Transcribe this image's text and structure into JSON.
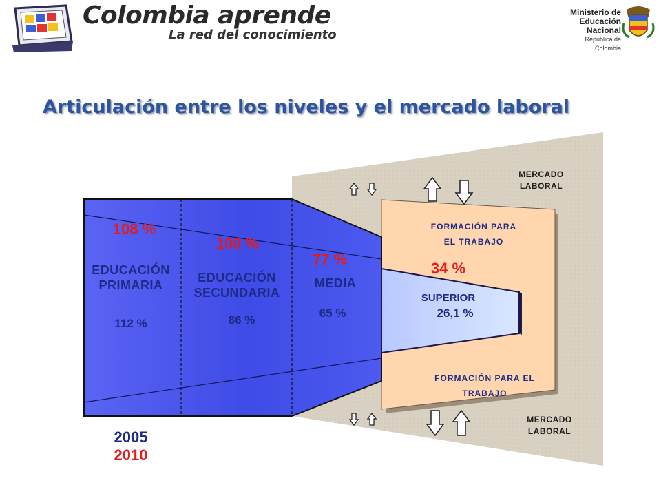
{
  "header": {
    "brand": "Colombia aprende",
    "tagline": "La red del conocimiento",
    "ministry_line1": "Ministerio de",
    "ministry_line2": "Educación",
    "ministry_line3": "Nacional",
    "ministry_line4": "República de Colombia"
  },
  "title": "Articulación entre los niveles y el mercado laboral",
  "levels": {
    "primaria": {
      "line1": "EDUCACIÓN",
      "line2": "PRIMARIA",
      "rate_2010": "108 %",
      "rate_2005": "112 %"
    },
    "secundaria": {
      "line1": "EDUCACIÓN",
      "line2": "SECUNDARIA",
      "rate_2010": "100 %",
      "rate_2005": "86 %"
    },
    "media": {
      "line1": "MEDIA",
      "rate_2010": "77 %",
      "rate_2005": "65 %"
    }
  },
  "outputs": {
    "formacion_top": {
      "line1": "FORMACIÓN PARA",
      "line2": "EL TRABAJO"
    },
    "superior": {
      "label": "SUPERIOR",
      "rate_2010": "34 %",
      "rate_2005": "26,1 %"
    },
    "formacion_bottom": {
      "line1": "FORMACIÓN PARA EL",
      "line2": "TRABAJO"
    }
  },
  "mercado_top": {
    "line1": "MERCADO",
    "line2": "LABORAL"
  },
  "mercado_bottom": {
    "line1": "MERCADO",
    "line2": "LABORAL"
  },
  "legend": {
    "year_2005": "2005",
    "year_2010": "2010"
  },
  "colors": {
    "title": "#2e54a0",
    "funnel_blue": "#4450ec",
    "orange": "#ffd7b0",
    "red": "#e21c1c",
    "navy": "#1d2a86",
    "background_panel": "#d9d2c4"
  },
  "icons": [
    "school-logo-icon",
    "coat-of-arms-icon",
    "arrow-up-icon",
    "arrow-down-icon"
  ]
}
